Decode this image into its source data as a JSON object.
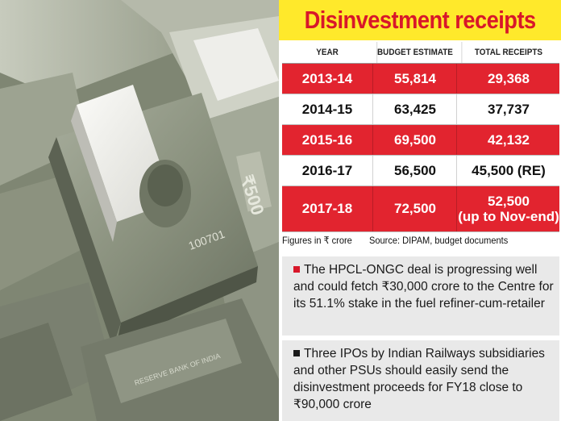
{
  "title": "Disinvestment receipts",
  "colors": {
    "title_bg": "#ffe92b",
    "title_text": "#d8172a",
    "row_highlight": "#e2242f",
    "bullet_bg": "#e9e9e9"
  },
  "chart_data": {
    "type": "table",
    "title": "Disinvestment receipts",
    "columns": [
      "YEAR",
      "BUDGET ESTIMATE",
      "TOTAL RECEIPTS"
    ],
    "rows": [
      {
        "year": "2013-14",
        "budget": "55,814",
        "receipts": "29,368",
        "highlight": true
      },
      {
        "year": "2014-15",
        "budget": "63,425",
        "receipts": "37,737",
        "highlight": false
      },
      {
        "year": "2015-16",
        "budget": "69,500",
        "receipts": "42,132",
        "highlight": true
      },
      {
        "year": "2016-17",
        "budget": "56,500",
        "receipts": "45,500 (RE)",
        "highlight": false
      },
      {
        "year": "2017-18",
        "budget": "72,500",
        "receipts": "52,500",
        "receipts_note": "(up to Nov-end)",
        "highlight": true
      }
    ]
  },
  "footnote": {
    "units": "Figures in ₹ crore",
    "source": "Source: DIPAM, budget documents"
  },
  "bullets": [
    "The HPCL-ONGC deal is progressing well and could fetch ₹30,000 crore to the Centre for its 51.1% stake in the fuel refiner-cum-retailer",
    "Three IPOs by Indian Railways subsidiaries and other PSUs should easily send the disinvestment proceeds for FY18 close to ₹90,000 crore"
  ],
  "photo": {
    "icon": "currency-notes-image",
    "visible_text": [
      "₹500",
      "RESERVE BANK OF INDIA",
      "100701"
    ]
  }
}
